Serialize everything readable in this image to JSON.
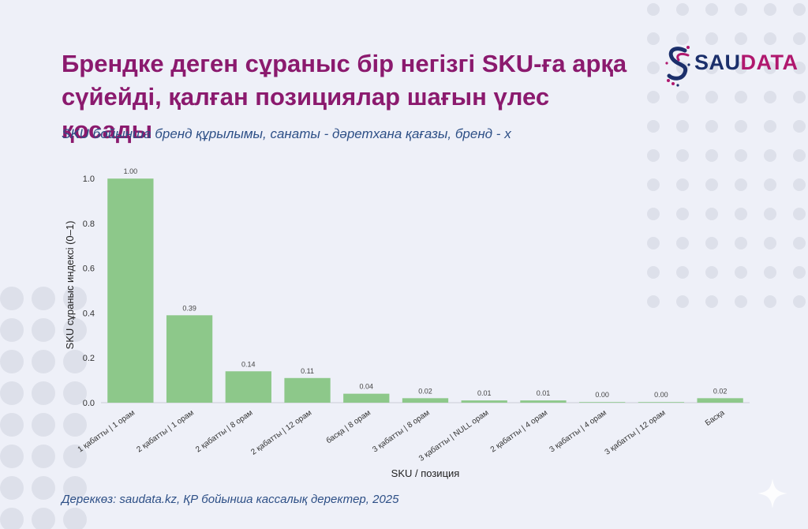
{
  "header": {
    "title": "Брендке деген сұраныс бір негізгі SKU-ға арқа сүйейді, қалған позициялар шағын үлес қосады",
    "subtitle": "SKU бойынша бренд құрылымы, санаты - дәретхана қағазы, бренд - х"
  },
  "logo": {
    "part1": "SAU",
    "part2": "DATA"
  },
  "footer": {
    "source": "Дереккөз: saudata.kz, ҚР бойынша кассалық деректер, 2025"
  },
  "colors": {
    "bar": "#8dc88a",
    "title": "#8b1a6e",
    "subtitle": "#2d4f86",
    "logo_dark": "#1b2f6b",
    "logo_accent": "#b0186e"
  },
  "chart_data": {
    "type": "bar",
    "categories": [
      "1 қабатты | 1 орам",
      "2 қабатты | 1 орам",
      "2 қабатты | 8 орам",
      "2 қабатты | 12 орам",
      "басқа | 8 орам",
      "3 қабатты | 8 орам",
      "3 қабатты | NULL орам",
      "2 қабатты | 4 орам",
      "3 қабатты | 4 орам",
      "3 қабатты | 12 орам",
      "Басқа"
    ],
    "values": [
      1.0,
      0.39,
      0.14,
      0.11,
      0.04,
      0.02,
      0.01,
      0.01,
      0.0,
      0.0,
      0.02
    ],
    "value_labels": [
      "1.00",
      "0.39",
      "0.14",
      "0.11",
      "0.04",
      "0.02",
      "0.01",
      "0.01",
      "0.00",
      "0.00",
      "0.02"
    ],
    "xlabel": "SKU / позиция",
    "ylabel": "SKU сұраныс индексі (0–1)",
    "ylim": [
      0,
      1.05
    ],
    "yticks": [
      0.0,
      0.2,
      0.4,
      0.6,
      0.8,
      1.0
    ],
    "ytick_labels": [
      "0.0",
      "0.2",
      "0.4",
      "0.6",
      "0.8",
      "1.0"
    ],
    "grid": false,
    "legend": "none"
  }
}
